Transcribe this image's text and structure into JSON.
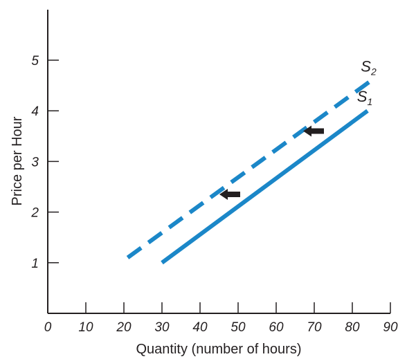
{
  "chart_data": {
    "type": "line",
    "xlabel": "Quantity (number of hours)",
    "ylabel": "Price per Hour",
    "xlim": [
      0,
      90
    ],
    "ylim": [
      0,
      5.8
    ],
    "x_ticks": [
      "0",
      "10",
      "20",
      "30",
      "40",
      "50",
      "60",
      "70",
      "80",
      "90"
    ],
    "y_ticks": [
      "1",
      "2",
      "3",
      "4",
      "5"
    ],
    "grid": false,
    "colors": {
      "line": "#1b87c8",
      "arrow": "#231f20",
      "axis": "#231f20"
    },
    "series": [
      {
        "label_main": "S",
        "label_sub": "1",
        "style": "solid",
        "x": [
          30,
          84
        ],
        "y": [
          1.0,
          4.0
        ]
      },
      {
        "label_main": "S",
        "label_sub": "2",
        "style": "dashed",
        "x": [
          21,
          85
        ],
        "y": [
          1.1,
          4.6
        ]
      }
    ],
    "annotations": [
      {
        "type": "arrow-left",
        "x": 48,
        "y": 2.35
      },
      {
        "type": "arrow-left",
        "x": 70,
        "y": 3.6
      }
    ]
  }
}
